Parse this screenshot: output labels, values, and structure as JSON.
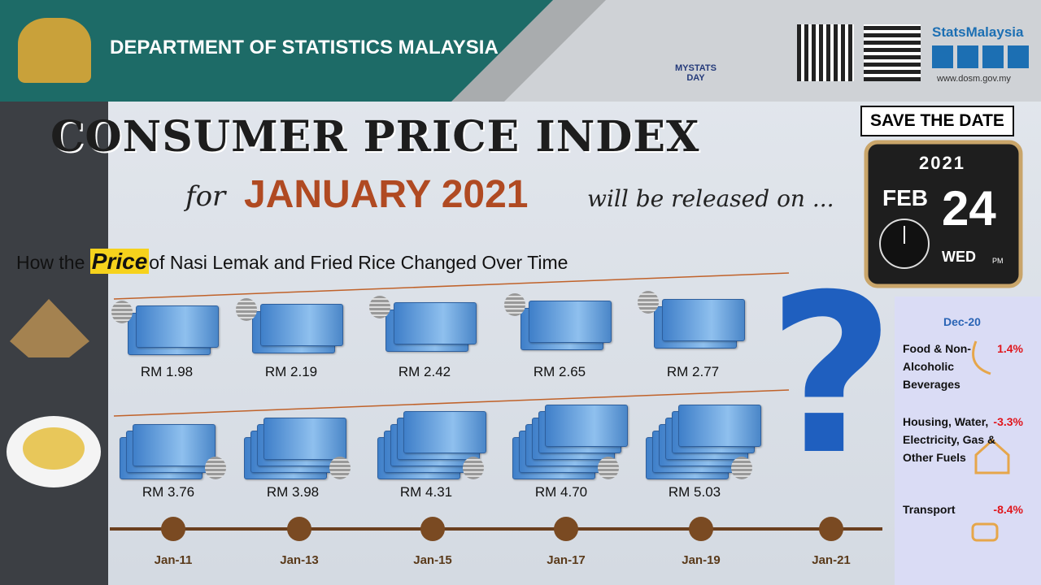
{
  "header": {
    "title": "DEPARTMENT OF STATISTICS MALAYSIA",
    "logos": [
      "MYSTATS",
      "DAY"
    ],
    "brand": "StatsMalaysia",
    "url": "www.dosm.gov.my"
  },
  "headline": {
    "title": "CONSUMER PRICE INDEX",
    "lead": "for",
    "period": "JANUARY 2021",
    "tail": "will be released on ..."
  },
  "subtitle": {
    "before": "How the",
    "highlight": "Price",
    "after": "of Nasi Lemak and Fried Rice Changed Over Time"
  },
  "nasi_lemak": [
    "RM 1.98",
    "RM 2.19",
    "RM 2.42",
    "RM 2.65",
    "RM 2.77"
  ],
  "fried_rice": [
    "RM 3.76",
    "RM 3.98",
    "RM 4.31",
    "RM 4.70",
    "RM 5.03"
  ],
  "timeline": [
    "Jan-11",
    "Jan-13",
    "Jan-15",
    "Jan-17",
    "Jan-19",
    "Jan-21"
  ],
  "save_the_date": {
    "label": "SAVE THE DATE",
    "year": "2021",
    "month": "FEB",
    "day": "24",
    "weekday": "WED",
    "ampm": "PM"
  },
  "sidebar": {
    "month": "Dec-20",
    "items": [
      {
        "label": "Food & Non-Alcoholic Beverages",
        "change": "1.4%"
      },
      {
        "label": "Housing, Water, Electricity, Gas & Other Fuels",
        "change": "-3.3%"
      },
      {
        "label": "Transport",
        "change": "-8.4%"
      }
    ]
  }
}
